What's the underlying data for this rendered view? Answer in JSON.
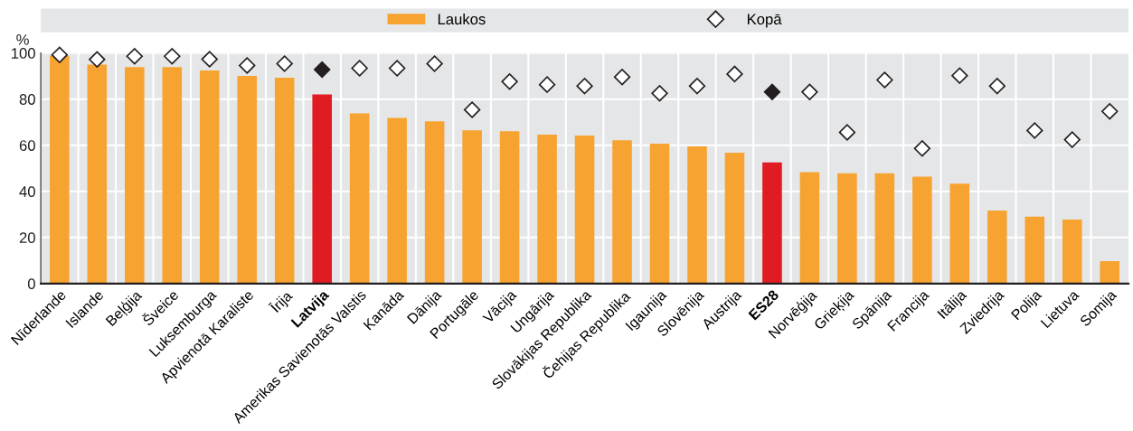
{
  "chart_data": {
    "type": "bar",
    "ylabel": "%",
    "legend": "top",
    "grid": true,
    "marker": "diamond",
    "categories": [
      "Nīderlande",
      "Islande",
      "Beļģija",
      "Šveice",
      "Luksemburga",
      "Apvienotā Karaliste",
      "Īrija",
      "Latvija",
      "Amerikas Savienotās Valstis",
      "Kanāda",
      "Dānija",
      "Portugāle",
      "Vācija",
      "Ungārija",
      "Slovākijas Republika",
      "Čehijas Republika",
      "Igaunija",
      "Slovēnija",
      "Austrija",
      "ES28",
      "Norvēģija",
      "Grieķija",
      "Spānija",
      "Francija",
      "Itālija",
      "Zviedrija",
      "Polija",
      "Lietuva",
      "Somija"
    ],
    "ylim": [
      0,
      100
    ],
    "yticks": [
      0,
      20,
      40,
      60,
      80,
      100
    ],
    "series": [
      {
        "name": "Laukos",
        "color": "#f7a331",
        "colors": [
          "#f7a331",
          "#f7a331",
          "#f7a331",
          "#f7a331",
          "#f7a331",
          "#f7a331",
          "#f7a331",
          "#e01b22",
          "#f7a331",
          "#f7a331",
          "#f7a331",
          "#f7a331",
          "#f7a331",
          "#f7a331",
          "#f7a331",
          "#f7a331",
          "#f7a331",
          "#f7a331",
          "#f7a331",
          "#e01b22",
          "#f7a331",
          "#f7a331",
          "#f7a331",
          "#f7a331",
          "#f7a331",
          "#f7a331",
          "#f7a331",
          "#f7a331",
          "#f7a331"
        ],
        "values": [
          98.8,
          95.0,
          93.9,
          93.9,
          92.4,
          90.1,
          89.3,
          82.0,
          73.8,
          71.9,
          70.4,
          66.5,
          66.1,
          64.6,
          64.2,
          62.2,
          60.7,
          59.5,
          56.8,
          52.6,
          48.3,
          47.9,
          47.9,
          46.4,
          43.3,
          31.7,
          29.0,
          27.8,
          9.7
        ]
      },
      {
        "name": "Kopā",
        "type": "scatter",
        "color": "#ffffff",
        "colors": [
          "#ffffff",
          "#ffffff",
          "#ffffff",
          "#ffffff",
          "#ffffff",
          "#ffffff",
          "#ffffff",
          "#231f20",
          "#ffffff",
          "#ffffff",
          "#ffffff",
          "#ffffff",
          "#ffffff",
          "#ffffff",
          "#ffffff",
          "#ffffff",
          "#ffffff",
          "#ffffff",
          "#ffffff",
          "#231f20",
          "#ffffff",
          "#ffffff",
          "#ffffff",
          "#ffffff",
          "#ffffff",
          "#ffffff",
          "#ffffff",
          "#ffffff",
          "#ffffff"
        ],
        "values": [
          99.2,
          97.2,
          98.6,
          98.6,
          97.3,
          94.6,
          95.4,
          92.8,
          93.4,
          93.4,
          95.4,
          75.4,
          87.6,
          86.3,
          85.7,
          89.6,
          82.5,
          85.7,
          90.9,
          83.1,
          83.1,
          65.6,
          88.3,
          58.6,
          90.2,
          85.7,
          66.4,
          62.4,
          74.7
        ]
      }
    ]
  }
}
